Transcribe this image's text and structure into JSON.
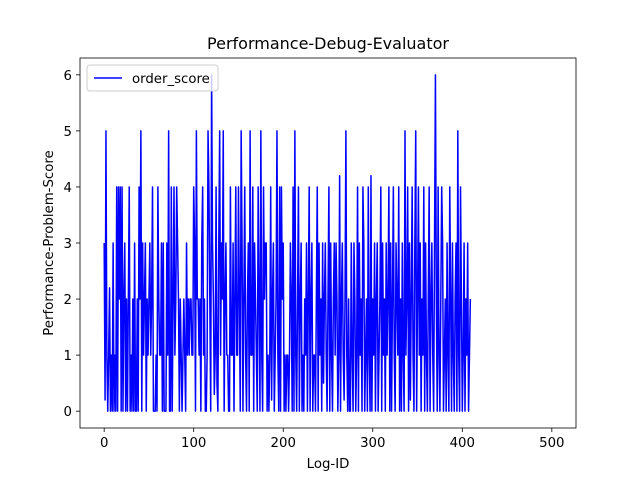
{
  "chart_data": {
    "type": "line",
    "title": "Performance-Debug-Evaluator",
    "xlabel": "Log-ID",
    "ylabel": "Performance-Problem-Score",
    "xlim": [
      -27,
      527
    ],
    "ylim": [
      -0.3,
      6.3
    ],
    "xticks": [
      0,
      100,
      200,
      300,
      400,
      500
    ],
    "yticks": [
      0,
      1,
      2,
      3,
      4,
      5,
      6
    ],
    "grid": false,
    "legend": {
      "position": "top-left",
      "entries": [
        "order_score"
      ]
    },
    "series": [
      {
        "name": "order_score",
        "color": "#0000ff",
        "x_start": 0,
        "x_step": 1,
        "values": [
          3,
          0.2,
          5,
          1,
          0,
          1,
          2.2,
          0,
          1,
          0,
          3,
          0,
          1,
          0,
          4,
          0,
          4,
          2,
          4,
          0,
          4,
          0,
          2,
          3,
          0,
          2,
          0,
          2,
          4,
          0,
          1,
          0,
          2,
          0,
          3,
          0,
          0,
          2,
          0,
          4,
          2,
          5,
          0,
          3,
          1,
          2,
          3,
          0,
          2,
          1,
          2,
          3,
          1,
          2,
          4,
          0,
          0,
          0,
          1,
          0,
          4,
          2,
          1,
          1,
          3,
          0,
          3,
          0,
          0,
          0,
          3,
          1,
          5,
          0,
          0,
          4,
          0,
          2,
          4,
          1,
          2,
          4,
          3,
          2,
          0,
          2,
          1,
          0,
          1,
          2,
          1,
          0,
          3,
          1,
          2,
          1,
          2,
          2,
          1,
          1,
          4,
          3,
          0,
          5,
          2,
          2,
          1,
          2,
          0,
          3,
          4,
          1,
          2,
          0,
          0,
          1,
          5,
          4,
          2,
          0,
          6,
          3,
          2,
          0.3,
          1,
          4,
          0.5,
          0,
          3,
          5,
          1,
          3,
          2,
          5,
          0,
          2,
          3,
          1,
          1,
          0,
          0,
          4,
          1,
          1,
          3,
          0,
          2,
          4,
          1,
          1,
          4,
          2,
          0,
          5,
          3,
          0,
          2,
          4,
          1,
          0,
          2,
          3,
          0,
          5,
          1,
          1,
          4,
          0,
          3,
          2,
          1,
          0,
          4,
          2,
          0,
          5,
          1,
          0,
          4,
          2,
          3,
          3,
          0,
          1,
          0,
          1,
          4,
          0.2,
          2,
          3,
          0,
          1,
          2,
          5,
          1,
          0,
          4,
          0,
          4,
          2,
          3,
          0,
          1,
          0,
          1,
          1,
          0,
          1,
          3,
          2,
          0,
          4,
          0,
          5,
          1,
          0,
          2,
          4,
          0,
          2,
          3,
          0,
          1,
          0,
          2,
          1,
          3,
          0,
          2,
          4,
          0,
          2,
          3,
          0,
          1,
          1,
          0,
          2,
          4,
          0,
          3,
          1,
          2,
          0,
          3,
          0.5,
          2,
          3,
          1,
          0,
          2,
          4,
          0,
          3,
          1,
          0,
          2,
          3,
          1,
          3,
          2,
          0,
          1,
          4.2,
          0,
          2,
          3,
          1,
          0.2,
          2,
          5,
          1,
          0,
          2,
          0,
          0,
          3,
          1,
          0,
          3,
          2,
          0,
          1,
          4,
          0,
          3,
          1,
          2,
          0,
          4,
          3,
          0,
          1,
          2,
          0,
          4,
          1,
          0,
          4.2,
          0,
          2,
          1,
          3,
          0,
          2,
          3,
          0,
          1,
          2,
          4,
          0,
          3,
          1,
          2,
          0,
          3,
          1,
          2,
          4,
          0,
          3,
          0,
          2,
          4,
          1,
          0,
          3,
          2,
          1,
          4,
          0,
          2,
          0,
          3,
          1,
          0,
          5,
          1,
          2,
          4,
          0,
          3,
          0.2,
          2,
          4,
          1,
          0,
          3,
          5,
          0,
          2,
          4,
          1,
          3,
          0,
          2,
          1,
          4,
          0,
          3,
          1,
          0,
          2,
          4,
          0,
          2,
          3,
          1,
          0,
          3,
          6,
          2,
          0,
          4,
          1,
          0,
          2,
          4,
          3,
          0,
          1,
          2,
          0,
          3,
          1,
          0,
          4,
          2,
          0,
          3,
          1,
          0,
          2,
          3,
          0,
          5,
          1,
          0,
          4,
          2,
          0,
          1,
          3,
          0,
          2,
          1,
          3,
          0,
          1,
          2
        ]
      }
    ]
  }
}
